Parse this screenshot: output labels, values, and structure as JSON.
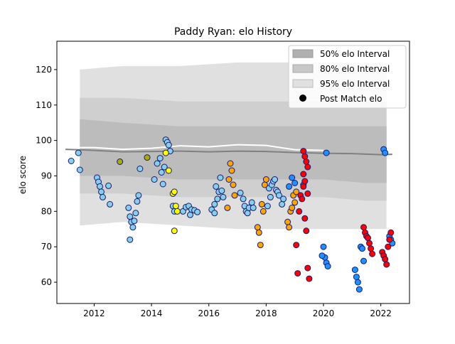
{
  "chart_data": {
    "type": "scatter",
    "title": "Paddy Ryan: elo History",
    "xlabel": "",
    "ylabel": "elo score",
    "xlim": [
      2010.7,
      2023.0
    ],
    "ylim": [
      54,
      128
    ],
    "x_ticks": [
      "2012",
      "2014",
      "2016",
      "2018",
      "2020",
      "2022"
    ],
    "y_ticks": [
      "60",
      "70",
      "80",
      "90",
      "100",
      "110",
      "120"
    ],
    "grid": false,
    "legend_position": "top-right",
    "legend": [
      {
        "label": "50% elo Interval",
        "kind": "band",
        "color": "#b0b0b0"
      },
      {
        "label": "80% elo Interval",
        "kind": "band",
        "color": "#c8c8c8"
      },
      {
        "label": "95% elo Interval",
        "kind": "band",
        "color": "#e0e0e0"
      },
      {
        "label": "Post Match elo",
        "kind": "dot",
        "color": "#000000"
      }
    ],
    "intervals": {
      "x": [
        2011.5,
        2013.0,
        2015.0,
        2017.0,
        2019.0,
        2020.0,
        2021.5,
        2022.2
      ],
      "p95_upper": [
        120,
        121,
        121,
        122,
        122,
        122,
        122,
        122
      ],
      "p95_lower": [
        76,
        77,
        76,
        75,
        75,
        75,
        75,
        75
      ],
      "p80_upper": [
        112,
        112,
        111,
        111,
        111,
        111,
        111,
        111
      ],
      "p80_lower": [
        85,
        85,
        84,
        84,
        84,
        84,
        83,
        83
      ],
      "p50_upper": [
        106,
        105,
        104,
        104,
        104,
        104,
        104,
        104
      ],
      "p50_lower": [
        90,
        90,
        89,
        89,
        89,
        89,
        88,
        88
      ]
    },
    "mean_line": {
      "x": [
        2011.0,
        2012.0,
        2013.0,
        2014.0,
        2015.0,
        2016.0,
        2017.0,
        2018.0,
        2019.0,
        2020.0,
        2021.0,
        2022.0,
        2022.4
      ],
      "y": [
        97.5,
        97.2,
        96.8,
        96.9,
        97.0,
        96.8,
        97.0,
        96.9,
        96.6,
        96.4,
        96.3,
        96.0,
        96.1
      ]
    },
    "upper_white_line": {
      "x": [
        2011.0,
        2012.0,
        2013.0,
        2014.0,
        2015.0,
        2016.0,
        2017.0,
        2018.0,
        2019.0,
        2020.0
      ],
      "y": [
        98.0,
        98.0,
        97.5,
        97.8,
        98.5,
        98.2,
        98.8,
        98.6,
        97.4,
        97.2
      ]
    },
    "series": [
      {
        "color": "#87ceeb",
        "points": [
          [
            2011.2,
            94.2
          ],
          [
            2011.45,
            96.5
          ],
          [
            2011.5,
            91.7
          ],
          [
            2012.1,
            89.5
          ],
          [
            2012.15,
            88.3
          ],
          [
            2012.2,
            87.0
          ],
          [
            2012.25,
            85.5
          ],
          [
            2012.3,
            84.0
          ],
          [
            2012.5,
            87.2
          ],
          [
            2012.55,
            82.0
          ],
          [
            2013.2,
            81.0
          ],
          [
            2013.25,
            78.5
          ],
          [
            2013.3,
            77.0
          ],
          [
            2013.35,
            75.5
          ],
          [
            2013.4,
            77.3
          ],
          [
            2013.45,
            79.5
          ],
          [
            2013.5,
            82.8
          ],
          [
            2013.55,
            84.5
          ],
          [
            2013.6,
            92.0
          ],
          [
            2013.25,
            72.0
          ],
          [
            2014.1,
            89.0
          ],
          [
            2014.2,
            93.5
          ],
          [
            2014.3,
            95.0
          ],
          [
            2014.35,
            91.0
          ],
          [
            2014.4,
            87.7
          ],
          [
            2014.5,
            100.2
          ],
          [
            2014.55,
            99.5
          ],
          [
            2014.6,
            98.7
          ],
          [
            2014.65,
            97.0
          ],
          [
            2014.45,
            92.5
          ],
          [
            2014.75,
            81.5
          ],
          [
            2014.8,
            80.0
          ],
          [
            2015.1,
            80.0
          ],
          [
            2015.2,
            81.2
          ],
          [
            2015.3,
            81.5
          ],
          [
            2015.35,
            79.0
          ],
          [
            2015.4,
            80.5
          ],
          [
            2015.5,
            80.3
          ],
          [
            2015.6,
            79.8
          ],
          [
            2016.1,
            80.5
          ],
          [
            2016.2,
            82.0
          ],
          [
            2016.25,
            87.0
          ],
          [
            2016.3,
            83.5
          ],
          [
            2016.35,
            85.5
          ],
          [
            2016.4,
            89.5
          ],
          [
            2016.45,
            85.8
          ],
          [
            2016.5,
            84.0
          ],
          [
            2016.2,
            79.5
          ],
          [
            2017.1,
            85.2
          ],
          [
            2017.2,
            83.5
          ],
          [
            2017.25,
            81.5
          ],
          [
            2017.3,
            80.0
          ],
          [
            2017.35,
            79.5
          ],
          [
            2017.4,
            81.0
          ],
          [
            2017.5,
            82.5
          ],
          [
            2017.55,
            81.0
          ],
          [
            2018.1,
            86.5
          ],
          [
            2018.15,
            84.0
          ],
          [
            2018.2,
            87.5
          ],
          [
            2018.25,
            88.5
          ],
          [
            2018.3,
            89.0
          ],
          [
            2018.35,
            86.0
          ],
          [
            2018.4,
            85.5
          ],
          [
            2018.45,
            84.5
          ],
          [
            2018.55,
            82.0
          ],
          [
            2018.6,
            83.5
          ],
          [
            2018.05,
            81.5
          ]
        ]
      },
      {
        "color": "#1e90ff",
        "points": [
          [
            2018.8,
            87.0
          ],
          [
            2018.9,
            89.5
          ],
          [
            2019.0,
            88.0
          ],
          [
            2019.3,
            87.5
          ],
          [
            2020.0,
            70.0
          ],
          [
            2020.05,
            67.0
          ],
          [
            2020.1,
            65.5
          ],
          [
            2020.15,
            64.5
          ],
          [
            2019.95,
            67.5
          ],
          [
            2020.1,
            96.5
          ],
          [
            2021.1,
            63.5
          ],
          [
            2021.15,
            61.5
          ],
          [
            2021.2,
            60.0
          ],
          [
            2021.25,
            58.0
          ],
          [
            2021.3,
            70.0
          ],
          [
            2021.35,
            69.5
          ],
          [
            2021.4,
            66.0
          ],
          [
            2022.1,
            97.5
          ],
          [
            2022.15,
            96.5
          ],
          [
            2022.3,
            73.0
          ],
          [
            2022.35,
            72.0
          ],
          [
            2022.4,
            71.0
          ]
        ]
      },
      {
        "color": "#ffa500",
        "points": [
          [
            2016.65,
            81.0
          ],
          [
            2016.7,
            89.0
          ],
          [
            2016.75,
            93.5
          ],
          [
            2016.8,
            91.5
          ],
          [
            2016.85,
            87.5
          ],
          [
            2016.9,
            84.5
          ],
          [
            2017.7,
            75.5
          ],
          [
            2017.75,
            74.0
          ],
          [
            2017.8,
            70.5
          ],
          [
            2017.85,
            82.0
          ],
          [
            2017.9,
            80.0
          ],
          [
            2017.95,
            87.5
          ],
          [
            2018.0,
            89.0
          ],
          [
            2018.75,
            77.0
          ],
          [
            2018.8,
            75.5
          ],
          [
            2018.85,
            80.0
          ],
          [
            2018.9,
            81.0
          ],
          [
            2018.95,
            84.5
          ],
          [
            2019.0,
            82.5
          ],
          [
            2019.05,
            85.5
          ]
        ]
      },
      {
        "color": "#ff0000",
        "points": [
          [
            2019.05,
            70.5
          ],
          [
            2019.1,
            62.5
          ],
          [
            2019.15,
            80.0
          ],
          [
            2019.2,
            84.5
          ],
          [
            2019.25,
            83.5
          ],
          [
            2019.3,
            87.0
          ],
          [
            2019.35,
            78.0
          ],
          [
            2019.4,
            74.5
          ],
          [
            2019.45,
            64.0
          ],
          [
            2019.5,
            61.0
          ],
          [
            2019.3,
            97.0
          ],
          [
            2019.35,
            95.5
          ],
          [
            2019.4,
            94.0
          ],
          [
            2019.45,
            92.5
          ],
          [
            2019.3,
            90.5
          ],
          [
            2019.35,
            88.5
          ],
          [
            2019.45,
            85.0
          ],
          [
            2021.4,
            75.5
          ],
          [
            2021.45,
            74.0
          ],
          [
            2021.5,
            73.0
          ],
          [
            2021.55,
            72.5
          ],
          [
            2021.6,
            71.0
          ],
          [
            2021.65,
            69.5
          ],
          [
            2021.7,
            68.0
          ],
          [
            2022.05,
            68.5
          ],
          [
            2022.1,
            67.5
          ],
          [
            2022.15,
            66.5
          ],
          [
            2022.2,
            65.0
          ],
          [
            2022.25,
            70.0
          ],
          [
            2022.3,
            72.0
          ],
          [
            2022.35,
            74.0
          ]
        ]
      },
      {
        "color": "#ffff00",
        "points": [
          [
            2014.6,
            91.5
          ],
          [
            2014.75,
            85.0
          ],
          [
            2014.8,
            85.5
          ],
          [
            2014.85,
            81.5
          ],
          [
            2014.9,
            80.0
          ],
          [
            2014.8,
            74.5
          ],
          [
            2014.5,
            96.5
          ]
        ]
      },
      {
        "color": "#aaaa00",
        "points": [
          [
            2012.9,
            94.0
          ],
          [
            2013.85,
            95.2
          ]
        ]
      }
    ]
  }
}
